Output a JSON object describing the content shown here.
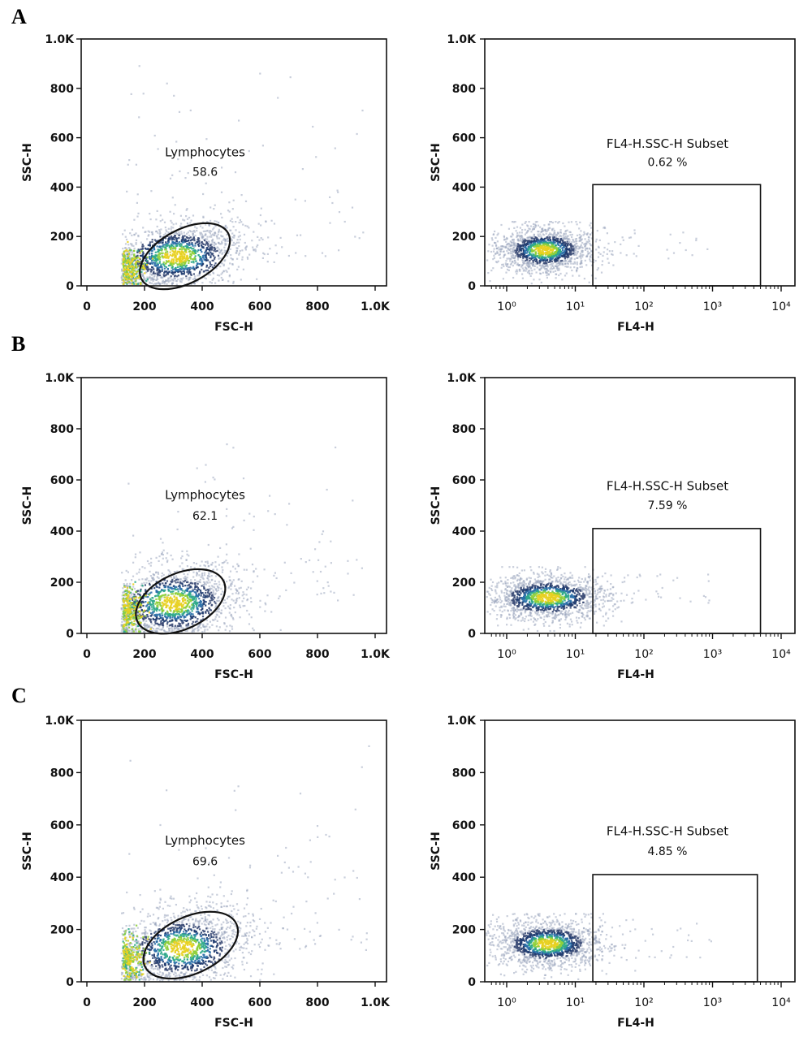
{
  "figure": {
    "panels": [
      {
        "letter": "A",
        "scatter": {
          "xlabel": "FSC-H",
          "ylabel": "SSC-H",
          "xticks": [
            "0",
            "200",
            "400",
            "600",
            "800",
            "1.0K"
          ],
          "yticks": [
            "0",
            "200",
            "400",
            "600",
            "800",
            "1.0K"
          ],
          "gate_name": "Lymphocytes",
          "gate_value": "58.6"
        },
        "histo": {
          "xlabel": "FL4-H",
          "ylabel": "SSC-H",
          "xticks": [
            "10⁰",
            "10¹",
            "10²",
            "10³",
            "10⁴"
          ],
          "yticks": [
            "0",
            "200",
            "400",
            "600",
            "800",
            "1.0K"
          ],
          "gate_name": "FL4-H.SSC-H Subset",
          "gate_value": "0.62 %"
        }
      },
      {
        "letter": "B",
        "scatter": {
          "xlabel": "FSC-H",
          "ylabel": "SSC-H",
          "xticks": [
            "0",
            "200",
            "400",
            "600",
            "800",
            "1.0K"
          ],
          "yticks": [
            "0",
            "200",
            "400",
            "600",
            "800",
            "1.0K"
          ],
          "gate_name": "Lymphocytes",
          "gate_value": "62.1"
        },
        "histo": {
          "xlabel": "FL4-H",
          "ylabel": "SSC-H",
          "xticks": [
            "10⁰",
            "10¹",
            "10²",
            "10³",
            "10⁴"
          ],
          "yticks": [
            "0",
            "200",
            "400",
            "600",
            "800",
            "1.0K"
          ],
          "gate_name": "FL4-H.SSC-H Subset",
          "gate_value": "7.59 %"
        }
      },
      {
        "letter": "C",
        "scatter": {
          "xlabel": "FSC-H",
          "ylabel": "SSC-H",
          "xticks": [
            "0",
            "200",
            "400",
            "600",
            "800",
            "1.0K"
          ],
          "yticks": [
            "0",
            "200",
            "400",
            "600",
            "800",
            "1.0K"
          ],
          "gate_name": "Lymphocytes",
          "gate_value": "69.6"
        },
        "histo": {
          "xlabel": "FL4-H",
          "ylabel": "SSC-H",
          "xticks": [
            "10⁰",
            "10¹",
            "10²",
            "10³",
            "10⁴"
          ],
          "yticks": [
            "0",
            "200",
            "400",
            "600",
            "800",
            "1.0K"
          ],
          "gate_name": "FL4-H.SSC-H Subset",
          "gate_value": "4.85 %"
        }
      }
    ]
  },
  "chart_data": [
    {
      "type": "scatter",
      "panel": "A",
      "subplot": "FSC-H vs SSC-H",
      "xlabel": "FSC-H",
      "ylabel": "SSC-H",
      "xlim": [
        0,
        1000
      ],
      "ylim": [
        0,
        1000
      ],
      "xticks": [
        "0",
        "200",
        "400",
        "600",
        "800",
        "1.0K"
      ],
      "yticks": [
        "0",
        "200",
        "400",
        "600",
        "800",
        "1.0K"
      ],
      "gate": {
        "name": "Lymphocytes",
        "value": 58.6,
        "shape": "ellipse",
        "center": [
          340,
          120
        ],
        "semi_axes": [
          170,
          70
        ],
        "rotation_deg": 28
      },
      "density": {
        "center": [
          310,
          120
        ],
        "spread": [
          130,
          70
        ],
        "tilt": 0.35,
        "hot_spot": [
          150,
          75
        ]
      },
      "colors": {
        "low": "#7f8fb0",
        "mid": "#203c70",
        "high": "#2fa88a",
        "peak": "#e8d020"
      }
    },
    {
      "type": "scatter",
      "panel": "A",
      "subplot": "FL4-H vs SSC-H",
      "xlabel": "FL4-H",
      "ylabel": "SSC-H",
      "xscale": "log",
      "xlim": [
        0.6,
        10000
      ],
      "ylim": [
        0,
        1000
      ],
      "xticks": [
        "10^0",
        "10^1",
        "10^2",
        "10^3",
        "10^4"
      ],
      "yticks": [
        "0",
        "200",
        "400",
        "600",
        "800",
        "1.0K"
      ],
      "gate": {
        "name": "FL4-H.SSC-H Subset",
        "value_percent": 0.62,
        "shape": "rectangle",
        "x_range": [
          18,
          5000
        ],
        "y_range": [
          0,
          410
        ]
      },
      "density": {
        "center_log10x": 0.55,
        "spread_log10x": 0.35,
        "center_y": 145,
        "spread_y": 45
      }
    },
    {
      "type": "scatter",
      "panel": "B",
      "subplot": "FSC-H vs SSC-H",
      "xlabel": "FSC-H",
      "ylabel": "SSC-H",
      "xlim": [
        0,
        1000
      ],
      "ylim": [
        0,
        1000
      ],
      "xticks": [
        "0",
        "200",
        "400",
        "600",
        "800",
        "1.0K"
      ],
      "yticks": [
        "0",
        "200",
        "400",
        "600",
        "800",
        "1.0K"
      ],
      "gate": {
        "name": "Lymphocytes",
        "value": 62.1,
        "shape": "ellipse",
        "center": [
          325,
          125
        ],
        "semi_axes": [
          165,
          70
        ],
        "rotation_deg": 25
      },
      "density": {
        "center": [
          300,
          120
        ],
        "spread": [
          130,
          75
        ],
        "tilt": 0.3,
        "hot_spot": [
          160,
          90
        ]
      }
    },
    {
      "type": "scatter",
      "panel": "B",
      "subplot": "FL4-H vs SSC-H",
      "xlabel": "FL4-H",
      "ylabel": "SSC-H",
      "xscale": "log",
      "xlim": [
        0.6,
        10000
      ],
      "ylim": [
        0,
        1000
      ],
      "xticks": [
        "10^0",
        "10^1",
        "10^2",
        "10^3",
        "10^4"
      ],
      "yticks": [
        "0",
        "200",
        "400",
        "600",
        "800",
        "1.0K"
      ],
      "gate": {
        "name": "FL4-H.SSC-H Subset",
        "value_percent": 7.59,
        "shape": "rectangle",
        "x_range": [
          18,
          5000
        ],
        "y_range": [
          0,
          410
        ]
      },
      "density": {
        "center_log10x": 0.6,
        "spread_log10x": 0.45,
        "center_y": 140,
        "spread_y": 45
      }
    },
    {
      "type": "scatter",
      "panel": "C",
      "subplot": "FSC-H vs SSC-H",
      "xlabel": "FSC-H",
      "ylabel": "SSC-H",
      "xlim": [
        0,
        1000
      ],
      "ylim": [
        0,
        1000
      ],
      "xticks": [
        "0",
        "200",
        "400",
        "600",
        "800",
        "1.0K"
      ],
      "yticks": [
        "0",
        "200",
        "400",
        "600",
        "800",
        "1.0K"
      ],
      "gate": {
        "name": "Lymphocytes",
        "value": 69.6,
        "shape": "ellipse",
        "center": [
          360,
          140
        ],
        "semi_axes": [
          175,
          70
        ],
        "rotation_deg": 25
      },
      "density": {
        "center": [
          330,
          130
        ],
        "spread": [
          130,
          75
        ],
        "tilt": 0.3,
        "hot_spot": [
          150,
          90
        ]
      }
    },
    {
      "type": "scatter",
      "panel": "C",
      "subplot": "FL4-H vs SSC-H",
      "xlabel": "FL4-H",
      "ylabel": "SSC-H",
      "xscale": "log",
      "xlim": [
        0.6,
        10000
      ],
      "ylim": [
        0,
        1000
      ],
      "xticks": [
        "10^0",
        "10^1",
        "10^2",
        "10^3",
        "10^4"
      ],
      "yticks": [
        "0",
        "200",
        "400",
        "600",
        "800",
        "1.0K"
      ],
      "gate": {
        "name": "FL4-H.SSC-H Subset",
        "value_percent": 4.85,
        "shape": "rectangle",
        "x_range": [
          18,
          4500
        ],
        "y_range": [
          0,
          410
        ]
      },
      "density": {
        "center_log10x": 0.6,
        "spread_log10x": 0.4,
        "center_y": 145,
        "spread_y": 45
      }
    }
  ]
}
